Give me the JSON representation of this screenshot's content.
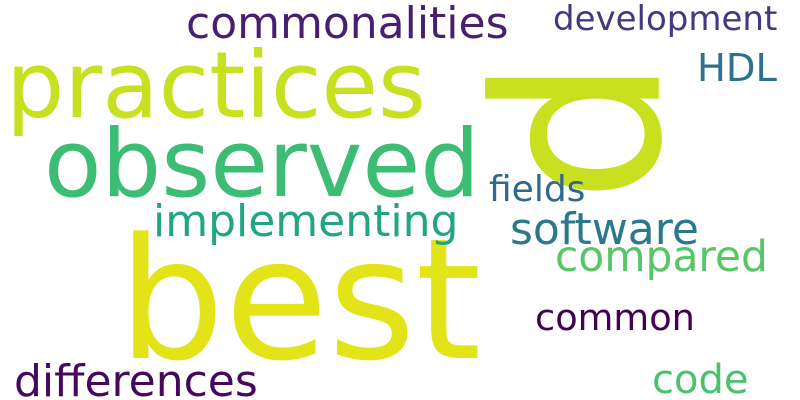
{
  "words": [
    {
      "text": "best",
      "color": "#e2e418"
    },
    {
      "text": "p",
      "color": "#c8e020"
    },
    {
      "text": "practices",
      "color": "#c7e020"
    },
    {
      "text": "observed",
      "color": "#3dbc74"
    },
    {
      "text": "commonalities",
      "color": "#481f70"
    },
    {
      "text": "development",
      "color": "#453781"
    },
    {
      "text": "HDL",
      "color": "#2c718e"
    },
    {
      "text": "implementing",
      "color": "#21a585"
    },
    {
      "text": "fields",
      "color": "#31688e"
    },
    {
      "text": "software",
      "color": "#2a788e"
    },
    {
      "text": "compared",
      "color": "#56c667"
    },
    {
      "text": "common",
      "color": "#440154"
    },
    {
      "text": "differences",
      "color": "#46085c"
    },
    {
      "text": "code",
      "color": "#4ac16d"
    }
  ]
}
